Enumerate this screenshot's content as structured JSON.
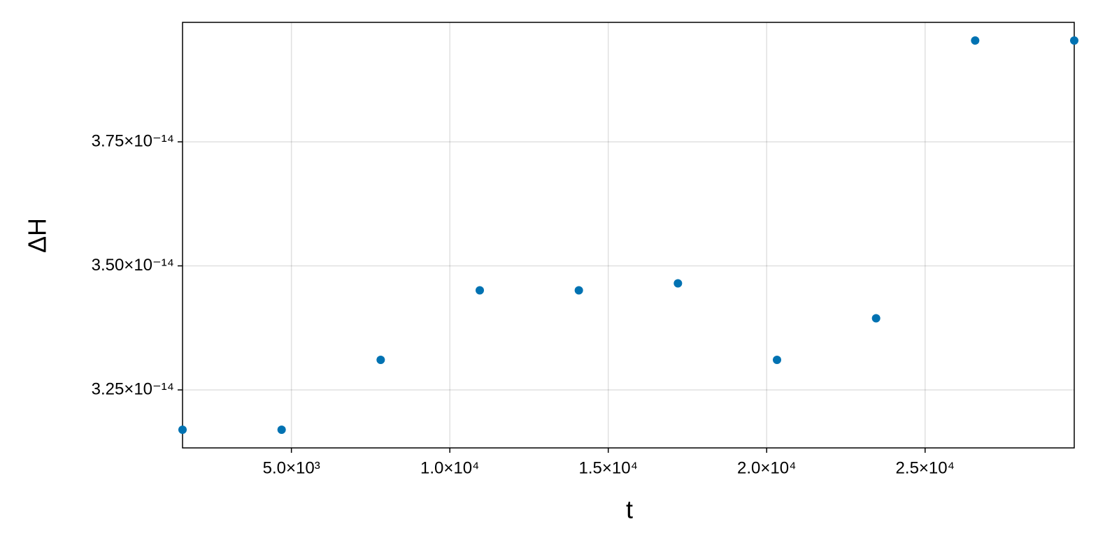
{
  "chart_data": {
    "type": "scatter",
    "x_label": "t",
    "y_label": "ΔH",
    "x": [
      1564,
      4691,
      7818,
      10945,
      14072,
      17199,
      20326,
      23453,
      26580,
      29707
    ],
    "series": [
      {
        "color": "#0072b2",
        "values": [
          3.1697e-14,
          3.1697e-14,
          3.3106e-14,
          3.4507e-14,
          3.4507e-14,
          3.4648e-14,
          3.3106e-14,
          3.3944e-14,
          3.9542e-14,
          3.9542e-14
        ]
      }
    ],
    "xlim": [
      1564,
      29707
    ],
    "ylim": [
      3.1331e-14,
      3.9908e-14
    ],
    "xticks": [
      {
        "value": 5000,
        "label": "5.0×10³"
      },
      {
        "value": 10000,
        "label": "1.0×10⁴"
      },
      {
        "value": 15000,
        "label": "1.5×10⁴"
      },
      {
        "value": 20000,
        "label": "2.0×10⁴"
      },
      {
        "value": 25000,
        "label": "2.5×10⁴"
      }
    ],
    "yticks": [
      {
        "value": 3.25e-14,
        "label": "3.25×10⁻¹⁴"
      },
      {
        "value": 3.5e-14,
        "label": "3.50×10⁻¹⁴"
      },
      {
        "value": 3.75e-14,
        "label": "3.75×10⁻¹⁴"
      }
    ],
    "grid": true
  }
}
